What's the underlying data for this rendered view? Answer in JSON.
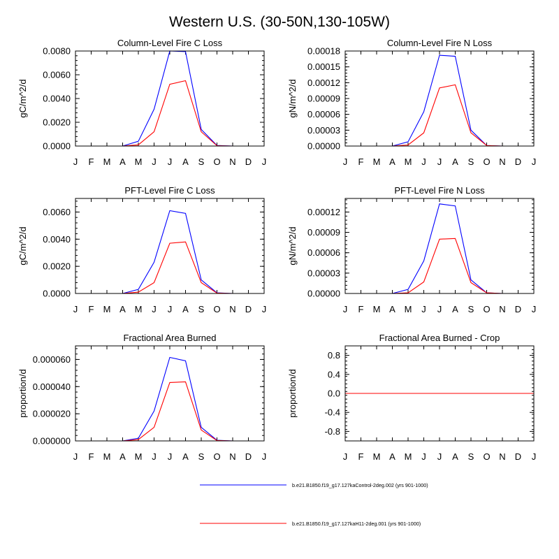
{
  "figure": {
    "title": "Western U.S. (30-50N,130-105W)"
  },
  "legend": {
    "placement": "bottom-center",
    "entries": [
      {
        "label": "b.e21.B1850.f19_g17.127kaControl-2deg.002 (yrs 901-1000)",
        "color": "#0000ff"
      },
      {
        "label": "b.e21.B1850.f19_g17.127kaH11-2deg.001 (yrs 901-1000)",
        "color": "#ff0000"
      }
    ]
  },
  "chart_data": [
    {
      "type": "line",
      "title": "Column-Level Fire C Loss",
      "ylabel": "gC/m^2/d",
      "categories": [
        "J",
        "F",
        "M",
        "A",
        "M",
        "J",
        "J",
        "A",
        "S",
        "O",
        "N",
        "D",
        "J"
      ],
      "ylim": [
        0,
        0.008
      ],
      "yticks": [
        "0.0000",
        "0.0020",
        "0.0040",
        "0.0060",
        "0.0080"
      ],
      "series": [
        {
          "color": "#0000ff",
          "values": [
            0,
            0,
            0,
            0,
            0.0004,
            0.0031,
            0.008,
            0.00795,
            0.0014,
            5e-05,
            0,
            0,
            0
          ]
        },
        {
          "color": "#ff0000",
          "values": [
            0,
            0,
            0,
            0,
            0.0001,
            0.0012,
            0.0052,
            0.0055,
            0.0012,
            3e-05,
            0,
            0,
            0
          ]
        }
      ]
    },
    {
      "type": "line",
      "title": "Column-Level Fire N Loss",
      "ylabel": "gN/m^2/d",
      "categories": [
        "J",
        "F",
        "M",
        "A",
        "M",
        "J",
        "J",
        "A",
        "S",
        "O",
        "N",
        "D",
        "J"
      ],
      "ylim": [
        0,
        0.00018
      ],
      "yticks": [
        "0.00000",
        "0.00003",
        "0.00006",
        "0.00009",
        "0.00012",
        "0.00015",
        "0.00018"
      ],
      "series": [
        {
          "color": "#0000ff",
          "values": [
            0,
            0,
            0,
            0,
            8e-06,
            6.5e-05,
            0.000172,
            0.00017,
            3e-05,
            1e-06,
            0,
            0,
            0
          ]
        },
        {
          "color": "#ff0000",
          "values": [
            0,
            0,
            0,
            0,
            2e-06,
            2.5e-05,
            0.00011,
            0.000116,
            2.5e-05,
            1e-06,
            0,
            0,
            0
          ]
        }
      ]
    },
    {
      "type": "line",
      "title": "PFT-Level Fire C Loss",
      "ylabel": "gC/m^2/d",
      "categories": [
        "J",
        "F",
        "M",
        "A",
        "M",
        "J",
        "J",
        "A",
        "S",
        "O",
        "N",
        "D",
        "J"
      ],
      "ylim": [
        0,
        0.007
      ],
      "yticks": [
        "0.0000",
        "0.0020",
        "0.0040",
        "0.0060"
      ],
      "series": [
        {
          "color": "#0000ff",
          "values": [
            0,
            0,
            0,
            0,
            0.0003,
            0.0023,
            0.0061,
            0.0059,
            0.001,
            5e-05,
            0,
            0,
            0
          ]
        },
        {
          "color": "#ff0000",
          "values": [
            0,
            0,
            0,
            0,
            0.0001,
            0.0008,
            0.0037,
            0.0038,
            0.0008,
            3e-05,
            0,
            0,
            0
          ]
        }
      ]
    },
    {
      "type": "line",
      "title": "PFT-Level Fire N Loss",
      "ylabel": "gN/m^2/d",
      "categories": [
        "J",
        "F",
        "M",
        "A",
        "M",
        "J",
        "J",
        "A",
        "S",
        "O",
        "N",
        "D",
        "J"
      ],
      "ylim": [
        0,
        0.00014
      ],
      "yticks": [
        "0.00000",
        "0.00003",
        "0.00006",
        "0.00009",
        "0.00012"
      ],
      "series": [
        {
          "color": "#0000ff",
          "values": [
            0,
            0,
            0,
            0,
            6e-06,
            4.8e-05,
            0.000132,
            0.000129,
            2e-05,
            1e-06,
            0,
            0,
            0
          ]
        },
        {
          "color": "#ff0000",
          "values": [
            0,
            0,
            0,
            0,
            1e-06,
            1.7e-05,
            8e-05,
            8.1e-05,
            1.6e-05,
            1e-06,
            0,
            0,
            0
          ]
        }
      ]
    },
    {
      "type": "line",
      "title": "Fractional Area Burned",
      "ylabel": "proportion/d",
      "categories": [
        "J",
        "F",
        "M",
        "A",
        "M",
        "J",
        "J",
        "A",
        "S",
        "O",
        "N",
        "D",
        "J"
      ],
      "ylim": [
        0,
        7e-05
      ],
      "yticks": [
        "0.000000",
        "0.000020",
        "0.000040",
        "0.000060"
      ],
      "series": [
        {
          "color": "#0000ff",
          "values": [
            0,
            0,
            0,
            0,
            2e-06,
            2.2e-05,
            6.15e-05,
            5.9e-05,
            1e-05,
            5e-07,
            0,
            0,
            0
          ]
        },
        {
          "color": "#ff0000",
          "values": [
            0,
            0,
            0,
            0,
            1e-06,
            1e-05,
            4.3e-05,
            4.35e-05,
            8e-06,
            3e-07,
            0,
            0,
            0
          ]
        }
      ]
    },
    {
      "type": "line",
      "title": "Fractional Area Burned - Crop",
      "ylabel": "proportion/d",
      "categories": [
        "J",
        "F",
        "M",
        "A",
        "M",
        "J",
        "J",
        "A",
        "S",
        "O",
        "N",
        "D",
        "J"
      ],
      "ylim": [
        -1,
        1
      ],
      "yticks": [
        "-0.8",
        "-0.4",
        "0.0",
        "0.4",
        "0.8"
      ],
      "series": [
        {
          "color": "#0000ff",
          "values": [
            0,
            0,
            0,
            0,
            0,
            0,
            0,
            0,
            0,
            0,
            0,
            0,
            0
          ]
        },
        {
          "color": "#ff0000",
          "values": [
            0,
            0,
            0,
            0,
            0,
            0,
            0,
            0,
            0,
            0,
            0,
            0,
            0
          ]
        }
      ]
    }
  ]
}
